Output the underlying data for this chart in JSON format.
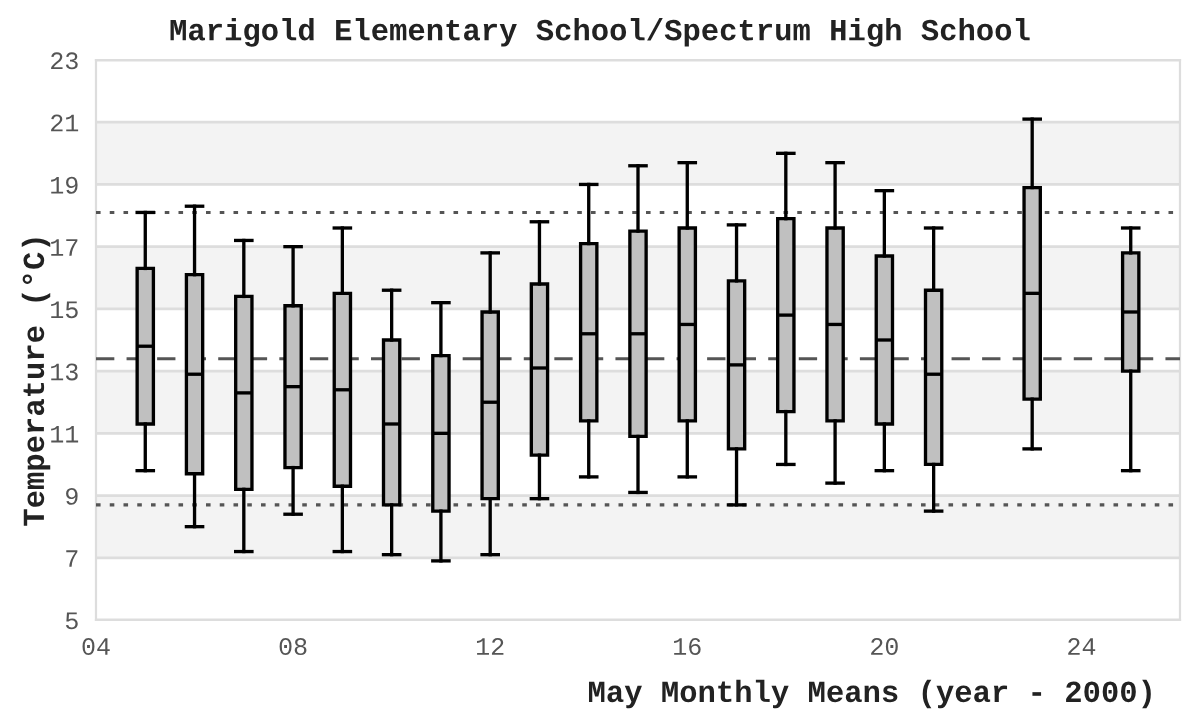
{
  "chart_data": {
    "type": "box",
    "title": "Marigold Elementary School/Spectrum High School",
    "xlabel": "May Monthly Means (year - 2000)",
    "ylabel": "Temperature (°C)",
    "x": [
      5,
      6,
      7,
      8,
      9,
      10,
      11,
      12,
      13,
      14,
      15,
      16,
      17,
      18,
      19,
      20,
      21,
      23,
      25
    ],
    "color": "#c0c0c0",
    "boxes": [
      {
        "low": 9.8,
        "q1": 11.3,
        "median": 13.8,
        "q3": 16.3,
        "high": 18.1
      },
      {
        "low": 8.0,
        "q1": 9.7,
        "median": 12.9,
        "q3": 16.1,
        "high": 18.3
      },
      {
        "low": 7.2,
        "q1": 9.2,
        "median": 12.3,
        "q3": 15.4,
        "high": 17.2
      },
      {
        "low": 8.4,
        "q1": 9.9,
        "median": 12.5,
        "q3": 15.1,
        "high": 17.0
      },
      {
        "low": 7.2,
        "q1": 9.3,
        "median": 12.4,
        "q3": 15.5,
        "high": 17.6
      },
      {
        "low": 7.1,
        "q1": 8.7,
        "median": 11.3,
        "q3": 14.0,
        "high": 15.6
      },
      {
        "low": 6.9,
        "q1": 8.5,
        "median": 11.0,
        "q3": 13.5,
        "high": 15.2
      },
      {
        "low": 7.1,
        "q1": 8.9,
        "median": 12.0,
        "q3": 14.9,
        "high": 16.8
      },
      {
        "low": 8.9,
        "q1": 10.3,
        "median": 13.1,
        "q3": 15.8,
        "high": 17.8
      },
      {
        "low": 9.6,
        "q1": 11.4,
        "median": 14.2,
        "q3": 17.1,
        "high": 19.0
      },
      {
        "low": 9.1,
        "q1": 10.9,
        "median": 14.2,
        "q3": 17.5,
        "high": 19.6
      },
      {
        "low": 9.6,
        "q1": 11.4,
        "median": 14.5,
        "q3": 17.6,
        "high": 19.7
      },
      {
        "low": 8.7,
        "q1": 10.5,
        "median": 13.2,
        "q3": 15.9,
        "high": 17.7
      },
      {
        "low": 10.0,
        "q1": 11.7,
        "median": 14.8,
        "q3": 17.9,
        "high": 20.0
      },
      {
        "low": 9.4,
        "q1": 11.4,
        "median": 14.5,
        "q3": 17.6,
        "high": 19.7
      },
      {
        "low": 9.8,
        "q1": 11.3,
        "median": 14.0,
        "q3": 16.7,
        "high": 18.8
      },
      {
        "low": 8.5,
        "q1": 10.0,
        "median": 12.9,
        "q3": 15.6,
        "high": 17.6
      },
      {
        "low": 10.5,
        "q1": 12.1,
        "median": 15.5,
        "q3": 18.9,
        "high": 21.1
      },
      {
        "low": 9.8,
        "q1": 13.0,
        "median": 14.9,
        "q3": 16.8,
        "high": 17.6
      }
    ],
    "xlim": [
      4,
      26
    ],
    "xticks": [
      {
        "value": 4,
        "label": "04"
      },
      {
        "value": 8,
        "label": "08"
      },
      12,
      16,
      20,
      24
    ],
    "ylim": [
      5,
      23
    ],
    "yticks": [
      5,
      7,
      9,
      11,
      13,
      15,
      17,
      19,
      21,
      23
    ],
    "grid": "y",
    "bands": [
      {
        "axis": "y",
        "from": 7,
        "to": 9,
        "color": "#f3f3f3"
      },
      {
        "axis": "y",
        "from": 11,
        "to": 13,
        "color": "#f3f3f3"
      },
      {
        "axis": "y",
        "from": 15,
        "to": 17,
        "color": "#f3f3f3"
      },
      {
        "axis": "y",
        "from": 19,
        "to": 21,
        "color": "#f3f3f3"
      }
    ],
    "ref_lines": [
      {
        "axis": "y",
        "value": 18.1,
        "line_style": "dotted",
        "color": "#555555"
      },
      {
        "axis": "y",
        "value": 13.4,
        "line_style": "dashed",
        "color": "#555555"
      },
      {
        "axis": "y",
        "value": 8.7,
        "line_style": "dotted",
        "color": "#555555"
      }
    ]
  }
}
